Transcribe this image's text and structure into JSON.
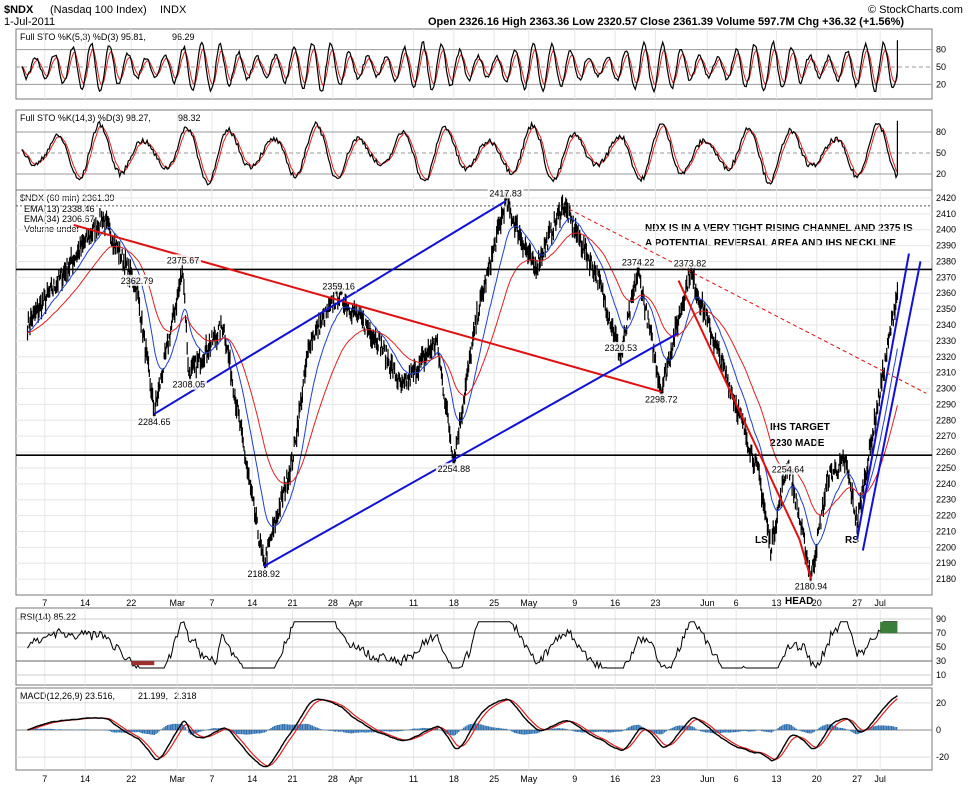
{
  "header": {
    "symbol": "$NDX",
    "name": "(Nasdaq 100 Index)",
    "exchange": "INDX",
    "date": "1-Jul-2011",
    "ohlc": "Open 2326.16  High 2363.36  Low 2320.57  Close 2361.39  Volume 597.7M  Chg +36.32 (+1.56%)",
    "credit": "© StockCharts.com"
  },
  "panels": {
    "sto_fast": {
      "label_main": "Full STO %K(5,3) %D(3) 95.81,",
      "label_value": "96.29",
      "ticks": [
        80,
        50,
        20
      ]
    },
    "sto_slow": {
      "label_main": "Full STO %K(14,3) %D(3) 98.27,",
      "label_value": "98.32",
      "ticks": [
        80,
        50,
        20
      ]
    },
    "price": {
      "label": "$NDX (60 min) 2361.39",
      "ema13": "EMA(13) 2338.46",
      "ema34": "EMA(34) 2306.67",
      "volume": "Volume undef"
    },
    "rsi": {
      "label": "RSI(14) 85.22",
      "ticks": [
        90,
        70,
        50,
        30,
        10
      ]
    },
    "macd": {
      "label_main": "MACD(12,26,9) 23.516,",
      "label_signal": "21.199,",
      "label_hist": "2.318",
      "ticks": [
        20,
        0,
        -20
      ]
    }
  },
  "annotations": {
    "channel_note_1": "NDX IS IN A VERY TIGHT RISING CHANNEL AND 2375 IS",
    "channel_note_2": "A POTENTIAL REVERSAL AREA AND IHS NECKLINE",
    "ihs_1": "IHS TARGET",
    "ihs_2": "2230 MADE",
    "ls": "LS",
    "head": "HEAD",
    "rs": "RS"
  },
  "colors": {
    "price_bar": "#000000",
    "ema13": "#1f3fd0",
    "ema34": "#e02020",
    "trend_red": "#e01010",
    "trend_blue": "#1010d8",
    "rsi_fill": "#3b7d3b",
    "rsi_fill_low": "#9c3030",
    "macd_hist": "#2b6fb0",
    "macd_signal": "#e02020"
  },
  "chart_data": {
    "type": "line",
    "x_ticks": [
      "7",
      "14",
      "22",
      "Mar",
      "7",
      "14",
      "21",
      "28",
      "Apr",
      "11",
      "18",
      "25",
      "May",
      "9",
      "16",
      "23",
      "Jun",
      "6",
      "13",
      "20",
      "27",
      "Jul"
    ],
    "x_tick_days": [
      -23,
      -16,
      -8,
      0,
      6,
      13,
      20,
      27,
      31,
      41,
      48,
      55,
      61,
      69,
      76,
      83,
      92,
      97,
      104,
      111,
      118,
      122
    ],
    "price_ylim": [
      2170,
      2425
    ],
    "price_ticks": [
      2180,
      2190,
      2200,
      2210,
      2220,
      2230,
      2240,
      2250,
      2260,
      2270,
      2280,
      2290,
      2300,
      2310,
      2320,
      2330,
      2340,
      2350,
      2360,
      2370,
      2380,
      2390,
      2400,
      2410,
      2420
    ],
    "pivots": [
      {
        "day": -26,
        "value": 2340
      },
      {
        "day": -13,
        "value": 2408
      },
      {
        "day": -7,
        "value": 2362.79
      },
      {
        "day": -4,
        "value": 2284.65,
        "label": "2284.65"
      },
      {
        "day": 1,
        "value": 2375.67
      },
      {
        "day": 2,
        "value": 2308.05
      },
      {
        "day": 8,
        "value": 2340
      },
      {
        "day": 13,
        "value": 2230
      },
      {
        "day": 15,
        "value": 2188.92
      },
      {
        "day": 20,
        "value": 2255
      },
      {
        "day": 23,
        "value": 2330
      },
      {
        "day": 28,
        "value": 2359.16
      },
      {
        "day": 35,
        "value": 2330
      },
      {
        "day": 39,
        "value": 2300
      },
      {
        "day": 45,
        "value": 2330
      },
      {
        "day": 48,
        "value": 2254.88
      },
      {
        "day": 52,
        "value": 2345
      },
      {
        "day": 57,
        "value": 2417.83
      },
      {
        "day": 62,
        "value": 2375
      },
      {
        "day": 67,
        "value": 2416
      },
      {
        "day": 73,
        "value": 2370
      },
      {
        "day": 77,
        "value": 2320.53
      },
      {
        "day": 80,
        "value": 2374.22
      },
      {
        "day": 84,
        "value": 2298.72
      },
      {
        "day": 89,
        "value": 2373.82
      },
      {
        "day": 97,
        "value": 2290
      },
      {
        "day": 101,
        "value": 2245
      },
      {
        "day": 103,
        "value": 2200
      },
      {
        "day": 106,
        "value": 2254.64
      },
      {
        "day": 110,
        "value": 2180.94
      },
      {
        "day": 113,
        "value": 2245
      },
      {
        "day": 116,
        "value": 2254
      },
      {
        "day": 118,
        "value": 2215
      },
      {
        "day": 125,
        "value": 2361.39
      }
    ],
    "pivot_labels": [
      {
        "text": "2362.79",
        "day": -7,
        "value": 2362.79
      },
      {
        "text": "2375.67",
        "day": 1,
        "value": 2375.67
      },
      {
        "text": "2308.05",
        "day": 2,
        "value": 2308.05
      },
      {
        "text": "2284.65",
        "day": -4,
        "value": 2284.65
      },
      {
        "text": "2188.92",
        "day": 15,
        "value": 2188.92
      },
      {
        "text": "2359.16",
        "day": 28,
        "value": 2359.16
      },
      {
        "text": "2254.88",
        "day": 48,
        "value": 2254.88
      },
      {
        "text": "2417.83",
        "day": 57,
        "value": 2417.83
      },
      {
        "text": "2374.22",
        "day": 80,
        "value": 2374.22
      },
      {
        "text": "2320.53",
        "day": 77,
        "value": 2320.53
      },
      {
        "text": "2298.72",
        "day": 84,
        "value": 2298.72
      },
      {
        "text": "2373.82",
        "day": 89,
        "value": 2373.82
      },
      {
        "text": "2254.64",
        "day": 106,
        "value": 2254.64
      },
      {
        "text": "2180.94",
        "day": 110,
        "value": 2180.94
      }
    ],
    "horizontal_lines": [
      2375,
      2258,
      2415
    ],
    "trendlines": [
      {
        "color": "red",
        "from": [
          -18,
          2403
        ],
        "to": [
          84,
          2298
        ]
      },
      {
        "color": "blue",
        "from": [
          -4,
          2284
        ],
        "to": [
          57,
          2418
        ]
      },
      {
        "color": "blue",
        "from": [
          15,
          2188
        ],
        "to": [
          87,
          2335
        ]
      },
      {
        "color": "red",
        "from": [
          87,
          2368
        ],
        "to": [
          108,
          2205
        ]
      },
      {
        "color": "red",
        "from": [
          108,
          2205
        ],
        "to": [
          110,
          2180
        ]
      },
      {
        "color": "blue",
        "from": [
          118,
          2205
        ],
        "to": [
          127,
          2385
        ]
      },
      {
        "color": "blue",
        "from": [
          119,
          2198
        ],
        "to": [
          129,
          2380
        ]
      },
      {
        "color": "red_dashed",
        "from": [
          68,
          2413
        ],
        "to": [
          130,
          2297
        ]
      }
    ]
  }
}
